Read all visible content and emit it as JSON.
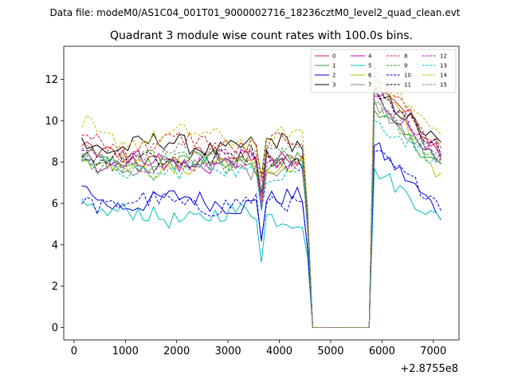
{
  "header": {
    "data_file": "Data file: modeM0/AS1C04_001T01_9000002716_18236cztM0_level2_quad_clean.evt"
  },
  "chart_data": {
    "type": "line",
    "title": "Quadrant 3 module wise count rates with 100.0s bins.",
    "xlabel": "",
    "ylabel": "",
    "x_offset_label": "+2.8755e8",
    "xlim": [
      -200,
      7500
    ],
    "ylim": [
      -0.6,
      13.6
    ],
    "x_ticks": [
      0,
      1000,
      2000,
      3000,
      4000,
      5000,
      6000,
      7000
    ],
    "y_ticks": [
      0,
      2,
      4,
      6,
      8,
      10,
      12
    ],
    "gap": {
      "last_before": 4550,
      "first_zero": 4650,
      "last_zero": 5750,
      "resume": 5850
    },
    "x": {
      "start": 150,
      "step": 100,
      "end": 7150
    },
    "series": [
      {
        "name": "0",
        "color": "#d62020",
        "dash": "solid",
        "base": 8.2,
        "peak": 12.2,
        "end": 8.5
      },
      {
        "name": "1",
        "color": "#2ca02c",
        "dash": "solid",
        "base": 8.0,
        "peak": 10.5,
        "end": 7.8
      },
      {
        "name": "2",
        "color": "#0000dd",
        "dash": "solid",
        "base": 6.1,
        "peak": 8.8,
        "end": 5.5
      },
      {
        "name": "3",
        "color": "#000000",
        "dash": "solid",
        "base": 8.8,
        "peak": 11.5,
        "end": 8.8
      },
      {
        "name": "4",
        "color": "#bf00bf",
        "dash": "solid",
        "base": 8.0,
        "peak": 11.2,
        "end": 8.2
      },
      {
        "name": "5",
        "color": "#00bfbf",
        "dash": "solid",
        "base": 5.4,
        "peak": 7.7,
        "end": 5.1
      },
      {
        "name": "6",
        "color": "#bfbf00",
        "dash": "solid",
        "base": 7.8,
        "peak": 12.0,
        "end": 7.2
      },
      {
        "name": "7",
        "color": "#7f7f7f",
        "dash": "solid",
        "base": 7.8,
        "peak": 11.0,
        "end": 7.8
      },
      {
        "name": "8",
        "color": "#d62020",
        "dash": "dashed",
        "base": 8.9,
        "peak": 12.6,
        "end": 8.5
      },
      {
        "name": "9",
        "color": "#2ca02c",
        "dash": "dashed",
        "base": 8.0,
        "peak": 10.8,
        "end": 8.0
      },
      {
        "name": "10",
        "color": "#0000dd",
        "dash": "dashed",
        "base": 6.0,
        "peak": 8.5,
        "end": 6.0
      },
      {
        "name": "11",
        "color": "#000000",
        "dash": "dashed",
        "base": 8.2,
        "peak": 11.6,
        "end": 8.6
      },
      {
        "name": "12",
        "color": "#bf00bf",
        "dash": "dashed",
        "base": 8.0,
        "peak": 11.8,
        "end": 8.0
      },
      {
        "name": "13",
        "color": "#00bfbf",
        "dash": "dashed",
        "base": 7.6,
        "peak": 10.0,
        "end": 8.0
      },
      {
        "name": "14",
        "color": "#bfbf00",
        "dash": "dashed",
        "base": 9.2,
        "peak": 12.3,
        "end": 9.2
      },
      {
        "name": "15",
        "color": "#7f7f7f",
        "dash": "dashed",
        "base": 8.4,
        "peak": 11.3,
        "end": 8.2
      }
    ]
  }
}
